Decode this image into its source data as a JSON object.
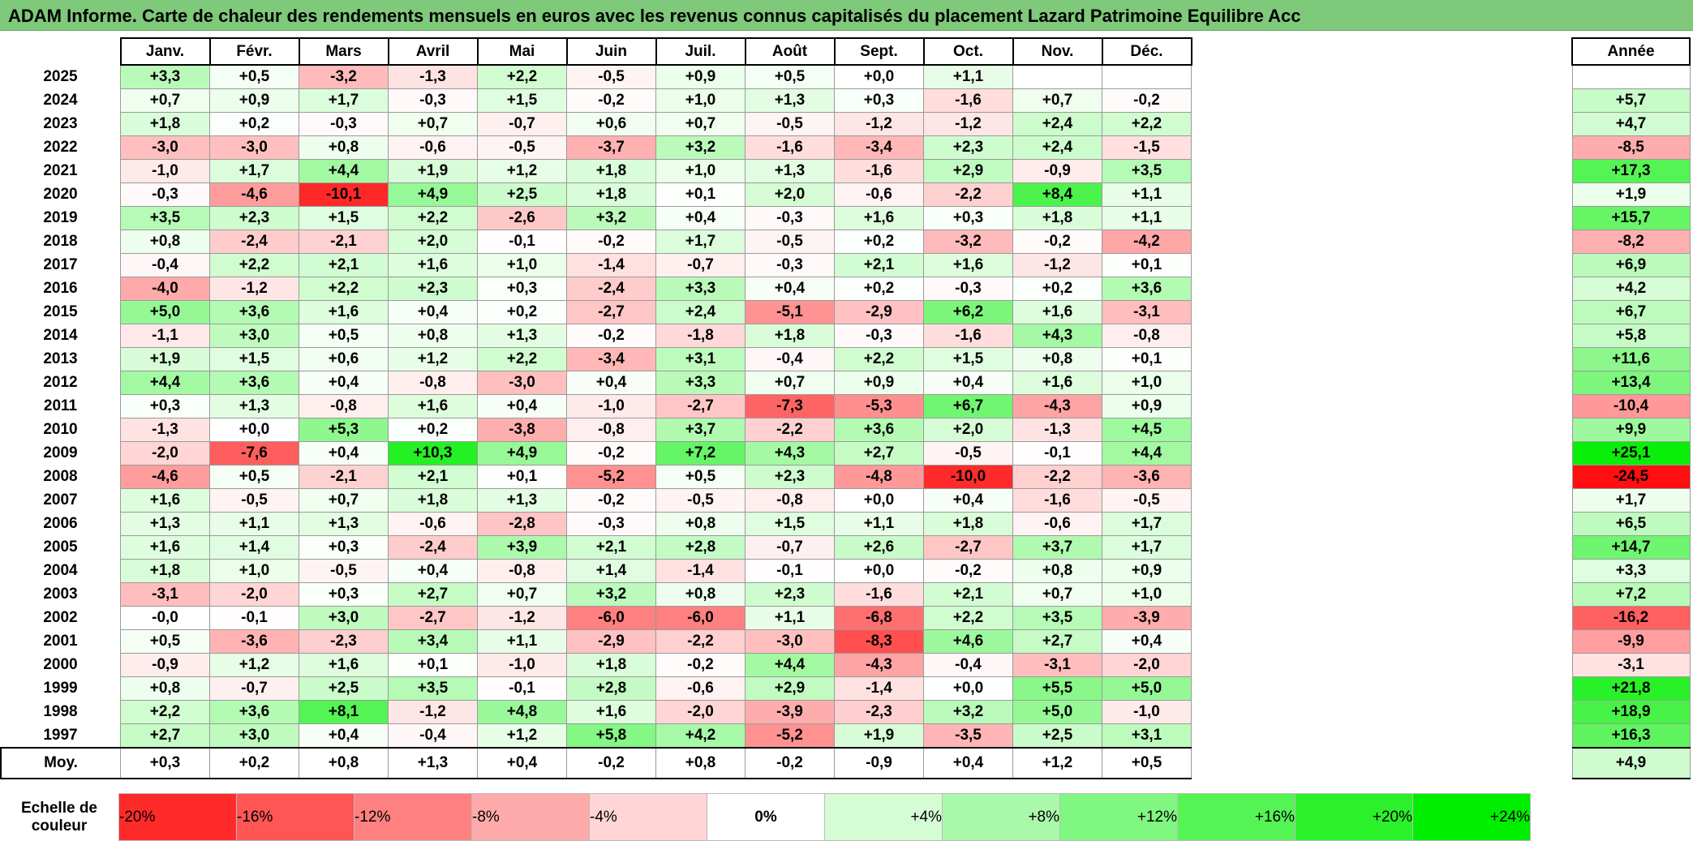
{
  "title": "ADAM Informe. Carte de chaleur des rendements mensuels en euros avec les revenus connus capitalisés du placement Lazard Patrimoine Equilibre Acc",
  "chart_data": {
    "type": "heatmap",
    "title": "ADAM Informe. Carte de chaleur des rendements mensuels en euros avec les revenus connus capitalisés du placement Lazard Patrimoine Equilibre Acc",
    "months": [
      "Janv.",
      "Févr.",
      "Mars",
      "Avril",
      "Mai",
      "Juin",
      "Juil.",
      "Août",
      "Sept.",
      "Oct.",
      "Nov.",
      "Déc."
    ],
    "annee_label": "Année",
    "rows": [
      {
        "year": "2025",
        "values": [
          "+3,3",
          "+0,5",
          "-3,2",
          "-1,3",
          "+2,2",
          "-0,5",
          "+0,9",
          "+0,5",
          "+0,0",
          "+1,1",
          "",
          ""
        ],
        "annee": ""
      },
      {
        "year": "2024",
        "values": [
          "+0,7",
          "+0,9",
          "+1,7",
          "-0,3",
          "+1,5",
          "-0,2",
          "+1,0",
          "+1,3",
          "+0,3",
          "-1,6",
          "+0,7",
          "-0,2"
        ],
        "annee": "+5,7"
      },
      {
        "year": "2023",
        "values": [
          "+1,8",
          "+0,2",
          "-0,3",
          "+0,7",
          "-0,7",
          "+0,6",
          "+0,7",
          "-0,5",
          "-1,2",
          "-1,2",
          "+2,4",
          "+2,2"
        ],
        "annee": "+4,7"
      },
      {
        "year": "2022",
        "values": [
          "-3,0",
          "-3,0",
          "+0,8",
          "-0,6",
          "-0,5",
          "-3,7",
          "+3,2",
          "-1,6",
          "-3,4",
          "+2,3",
          "+2,4",
          "-1,5"
        ],
        "annee": "-8,5"
      },
      {
        "year": "2021",
        "values": [
          "-1,0",
          "+1,7",
          "+4,4",
          "+1,9",
          "+1,2",
          "+1,8",
          "+1,0",
          "+1,3",
          "-1,6",
          "+2,9",
          "-0,9",
          "+3,5"
        ],
        "annee": "+17,3"
      },
      {
        "year": "2020",
        "values": [
          "-0,3",
          "-4,6",
          "-10,1",
          "+4,9",
          "+2,5",
          "+1,8",
          "+0,1",
          "+2,0",
          "-0,6",
          "-2,2",
          "+8,4",
          "+1,1"
        ],
        "annee": "+1,9"
      },
      {
        "year": "2019",
        "values": [
          "+3,5",
          "+2,3",
          "+1,5",
          "+2,2",
          "-2,6",
          "+3,2",
          "+0,4",
          "-0,3",
          "+1,6",
          "+0,3",
          "+1,8",
          "+1,1"
        ],
        "annee": "+15,7"
      },
      {
        "year": "2018",
        "values": [
          "+0,8",
          "-2,4",
          "-2,1",
          "+2,0",
          "-0,1",
          "-0,2",
          "+1,7",
          "-0,5",
          "+0,2",
          "-3,2",
          "-0,2",
          "-4,2"
        ],
        "annee": "-8,2"
      },
      {
        "year": "2017",
        "values": [
          "-0,4",
          "+2,2",
          "+2,1",
          "+1,6",
          "+1,0",
          "-1,4",
          "-0,7",
          "-0,3",
          "+2,1",
          "+1,6",
          "-1,2",
          "+0,1"
        ],
        "annee": "+6,9"
      },
      {
        "year": "2016",
        "values": [
          "-4,0",
          "-1,2",
          "+2,2",
          "+2,3",
          "+0,3",
          "-2,4",
          "+3,3",
          "+0,4",
          "+0,2",
          "-0,3",
          "+0,2",
          "+3,6"
        ],
        "annee": "+4,2"
      },
      {
        "year": "2015",
        "values": [
          "+5,0",
          "+3,6",
          "+1,6",
          "+0,4",
          "+0,2",
          "-2,7",
          "+2,4",
          "-5,1",
          "-2,9",
          "+6,2",
          "+1,6",
          "-3,1"
        ],
        "annee": "+6,7"
      },
      {
        "year": "2014",
        "values": [
          "-1,1",
          "+3,0",
          "+0,5",
          "+0,8",
          "+1,3",
          "-0,2",
          "-1,8",
          "+1,8",
          "-0,3",
          "-1,6",
          "+4,3",
          "-0,8"
        ],
        "annee": "+5,8"
      },
      {
        "year": "2013",
        "values": [
          "+1,9",
          "+1,5",
          "+0,6",
          "+1,2",
          "+2,2",
          "-3,4",
          "+3,1",
          "-0,4",
          "+2,2",
          "+1,5",
          "+0,8",
          "+0,1"
        ],
        "annee": "+11,6"
      },
      {
        "year": "2012",
        "values": [
          "+4,4",
          "+3,6",
          "+0,4",
          "-0,8",
          "-3,0",
          "+0,4",
          "+3,3",
          "+0,7",
          "+0,9",
          "+0,4",
          "+1,6",
          "+1,0"
        ],
        "annee": "+13,4"
      },
      {
        "year": "2011",
        "values": [
          "+0,3",
          "+1,3",
          "-0,8",
          "+1,6",
          "+0,4",
          "-1,0",
          "-2,7",
          "-7,3",
          "-5,3",
          "+6,7",
          "-4,3",
          "+0,9"
        ],
        "annee": "-10,4"
      },
      {
        "year": "2010",
        "values": [
          "-1,3",
          "+0,0",
          "+5,3",
          "+0,2",
          "-3,8",
          "-0,8",
          "+3,7",
          "-2,2",
          "+3,6",
          "+2,0",
          "-1,3",
          "+4,5"
        ],
        "annee": "+9,9"
      },
      {
        "year": "2009",
        "values": [
          "-2,0",
          "-7,6",
          "+0,4",
          "+10,3",
          "+4,9",
          "-0,2",
          "+7,2",
          "+4,3",
          "+2,7",
          "-0,5",
          "-0,1",
          "+4,4"
        ],
        "annee": "+25,1"
      },
      {
        "year": "2008",
        "values": [
          "-4,6",
          "+0,5",
          "-2,1",
          "+2,1",
          "+0,1",
          "-5,2",
          "+0,5",
          "+2,3",
          "-4,8",
          "-10,0",
          "-2,2",
          "-3,6"
        ],
        "annee": "-24,5"
      },
      {
        "year": "2007",
        "values": [
          "+1,6",
          "-0,5",
          "+0,7",
          "+1,8",
          "+1,3",
          "-0,2",
          "-0,5",
          "-0,8",
          "+0,0",
          "+0,4",
          "-1,6",
          "-0,5"
        ],
        "annee": "+1,7"
      },
      {
        "year": "2006",
        "values": [
          "+1,3",
          "+1,1",
          "+1,3",
          "-0,6",
          "-2,8",
          "-0,3",
          "+0,8",
          "+1,5",
          "+1,1",
          "+1,8",
          "-0,6",
          "+1,7"
        ],
        "annee": "+6,5"
      },
      {
        "year": "2005",
        "values": [
          "+1,6",
          "+1,4",
          "+0,3",
          "-2,4",
          "+3,9",
          "+2,1",
          "+2,8",
          "-0,7",
          "+2,6",
          "-2,7",
          "+3,7",
          "+1,7"
        ],
        "annee": "+14,7"
      },
      {
        "year": "2004",
        "values": [
          "+1,8",
          "+1,0",
          "-0,5",
          "+0,4",
          "-0,8",
          "+1,4",
          "-1,4",
          "-0,1",
          "+0,0",
          "-0,2",
          "+0,8",
          "+0,9"
        ],
        "annee": "+3,3"
      },
      {
        "year": "2003",
        "values": [
          "-3,1",
          "-2,0",
          "+0,3",
          "+2,7",
          "+0,7",
          "+3,2",
          "+0,8",
          "+2,3",
          "-1,6",
          "+2,1",
          "+0,7",
          "+1,0"
        ],
        "annee": "+7,2"
      },
      {
        "year": "2002",
        "values": [
          "-0,0",
          "-0,1",
          "+3,0",
          "-2,7",
          "-1,2",
          "-6,0",
          "-6,0",
          "+1,1",
          "-6,8",
          "+2,2",
          "+3,5",
          "-3,9"
        ],
        "annee": "-16,2"
      },
      {
        "year": "2001",
        "values": [
          "+0,5",
          "-3,6",
          "-2,3",
          "+3,4",
          "+1,1",
          "-2,9",
          "-2,2",
          "-3,0",
          "-8,3",
          "+4,6",
          "+2,7",
          "+0,4"
        ],
        "annee": "-9,9"
      },
      {
        "year": "2000",
        "values": [
          "-0,9",
          "+1,2",
          "+1,6",
          "+0,1",
          "-1,0",
          "+1,8",
          "-0,2",
          "+4,4",
          "-4,3",
          "-0,4",
          "-3,1",
          "-2,0"
        ],
        "annee": "-3,1"
      },
      {
        "year": "1999",
        "values": [
          "+0,8",
          "-0,7",
          "+2,5",
          "+3,5",
          "-0,1",
          "+2,8",
          "-0,6",
          "+2,9",
          "-1,4",
          "+0,0",
          "+5,5",
          "+5,0"
        ],
        "annee": "+21,8"
      },
      {
        "year": "1998",
        "values": [
          "+2,2",
          "+3,6",
          "+8,1",
          "-1,2",
          "+4,8",
          "+1,6",
          "-2,0",
          "-3,9",
          "-2,3",
          "+3,2",
          "+5,0",
          "-1,0"
        ],
        "annee": "+18,9"
      },
      {
        "year": "1997",
        "values": [
          "+2,7",
          "+3,0",
          "+0,4",
          "-0,4",
          "+1,2",
          "+5,8",
          "+4,2",
          "-5,2",
          "+1,9",
          "-3,5",
          "+2,5",
          "+3,1"
        ],
        "annee": "+16,3"
      }
    ],
    "moy": {
      "label": "Moy.",
      "values": [
        "+0,3",
        "+0,2",
        "+0,8",
        "+1,3",
        "+0,4",
        "-0,2",
        "+0,8",
        "-0,2",
        "-0,9",
        "+0,4",
        "+1,2",
        "+0,5"
      ],
      "annee": "+4,9"
    },
    "color_scale": {
      "label": "Echelle de couleur",
      "ticks": [
        "-20%",
        "-16%",
        "-12%",
        "-8%",
        "-4%",
        "0%",
        "+4%",
        "+8%",
        "+12%",
        "+16%",
        "+20%",
        "+24%"
      ],
      "values": [
        -20,
        -16,
        -12,
        -8,
        -4,
        0,
        4,
        8,
        12,
        16,
        20,
        24
      ],
      "negative_color": "#ff0000",
      "positive_color": "#00ee00",
      "neutral_color": "#ffffff"
    }
  }
}
